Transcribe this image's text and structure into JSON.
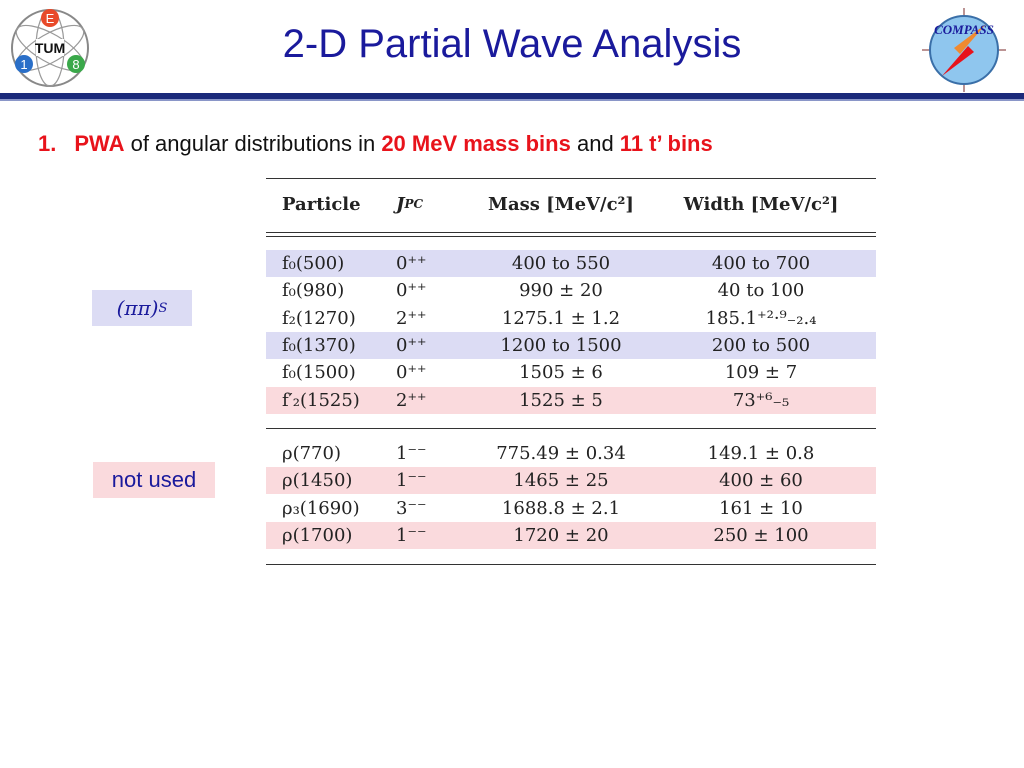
{
  "slide": {
    "title": "2-D Partial Wave Analysis",
    "logo_left_letters": [
      "E",
      "TUM",
      "1",
      "8"
    ],
    "logo_right_text": "COMPASS"
  },
  "bullet": {
    "number": "1.",
    "pwa": "PWA",
    "text1": " of angular distributions in ",
    "mass_bins": "20 MeV mass bins",
    "text2": " and ",
    "t_bins": "11 t’ bins"
  },
  "labels": {
    "pipi": "(ππ)",
    "pipi_sub": "S",
    "not_used": "not used"
  },
  "table": {
    "headers": [
      "Particle",
      "J",
      "PC",
      "Mass [MeV/c²]",
      "Width [MeV/c²]"
    ],
    "group1": [
      {
        "particle": "f₀(500)",
        "jpc": "0⁺⁺",
        "mass": "400 to 550",
        "width": "400 to 700",
        "bg": "blue"
      },
      {
        "particle": "f₀(980)",
        "jpc": "0⁺⁺",
        "mass": "990 ± 20",
        "width": "40 to 100",
        "bg": "white"
      },
      {
        "particle": "f₂(1270)",
        "jpc": "2⁺⁺",
        "mass": "1275.1 ± 1.2",
        "width": "185.1⁺²·⁹₋₂.₄",
        "bg": "white"
      },
      {
        "particle": "f₀(1370)",
        "jpc": "0⁺⁺",
        "mass": "1200 to 1500",
        "width": "200 to 500",
        "bg": "blue"
      },
      {
        "particle": "f₀(1500)",
        "jpc": "0⁺⁺",
        "mass": "1505 ± 6",
        "width": "109 ± 7",
        "bg": "white"
      },
      {
        "particle": "f′₂(1525)",
        "jpc": "2⁺⁺",
        "mass": "1525 ± 5",
        "width": "73⁺⁶₋₅",
        "bg": "pink"
      }
    ],
    "group2": [
      {
        "particle": "ρ(770)",
        "jpc": "1⁻⁻",
        "mass": "775.49 ± 0.34",
        "width": "149.1 ± 0.8",
        "bg": "white"
      },
      {
        "particle": "ρ(1450)",
        "jpc": "1⁻⁻",
        "mass": "1465 ± 25",
        "width": "400 ± 60",
        "bg": "pink"
      },
      {
        "particle": "ρ₃(1690)",
        "jpc": "3⁻⁻",
        "mass": "1688.8 ± 2.1",
        "width": "161 ± 10",
        "bg": "white"
      },
      {
        "particle": "ρ(1700)",
        "jpc": "1⁻⁻",
        "mass": "1720 ± 20",
        "width": "250 ± 100",
        "bg": "pink"
      }
    ]
  },
  "colors": {
    "title": "#1a1a9c",
    "accent_red": "#e8131b",
    "row_blue": "#dcdcf4",
    "row_pink": "#fadadd",
    "header_bar": "#1b2a7a"
  }
}
